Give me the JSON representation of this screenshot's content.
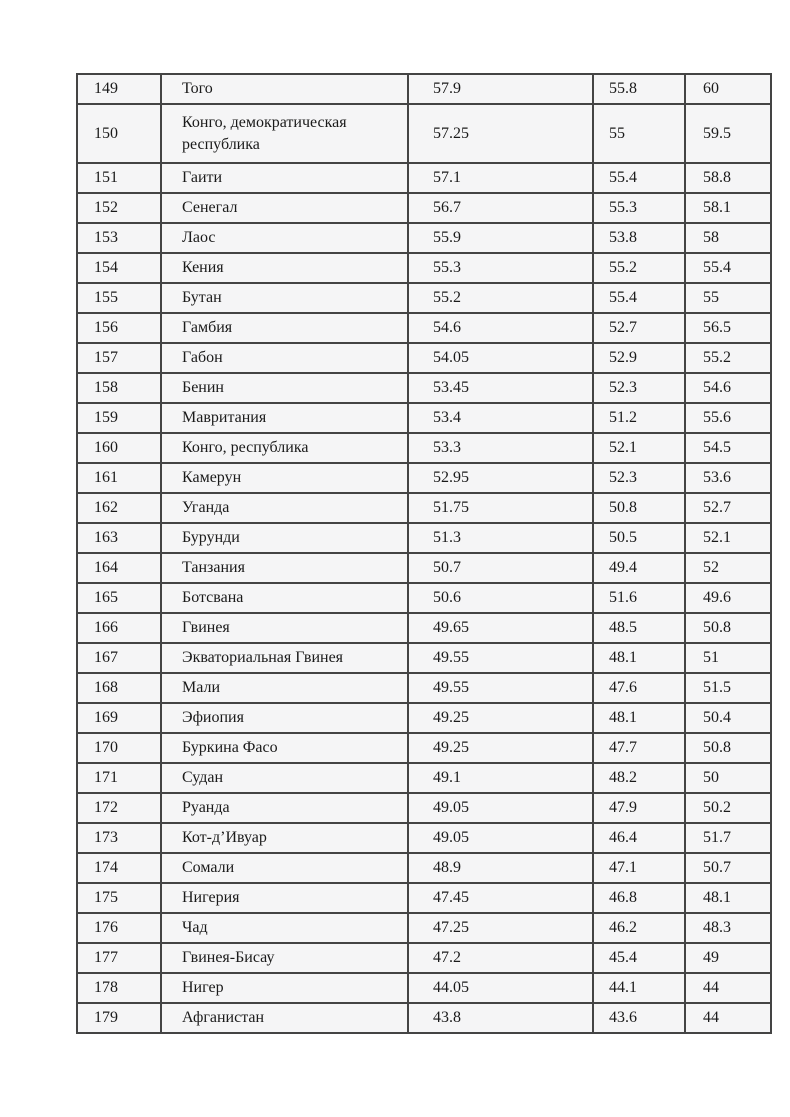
{
  "document": {
    "page_background": "#ffffff",
    "table": {
      "cell_background": "#f5f5f6",
      "border_color": "#444444",
      "text_color": "#1a1a1a",
      "rows": [
        [
          "149",
          "Того",
          "57.9",
          "55.8",
          "60"
        ],
        [
          "150",
          "Конго, демократическая республика",
          "57.25",
          "55",
          "59.5"
        ],
        [
          "151",
          "Гаити",
          "57.1",
          "55.4",
          "58.8"
        ],
        [
          "152",
          "Сенегал",
          "56.7",
          "55.3",
          "58.1"
        ],
        [
          "153",
          "Лаос",
          "55.9",
          "53.8",
          "58"
        ],
        [
          "154",
          "Кения",
          "55.3",
          "55.2",
          "55.4"
        ],
        [
          "155",
          "Бутан",
          "55.2",
          "55.4",
          "55"
        ],
        [
          "156",
          "Гамбия",
          "54.6",
          "52.7",
          "56.5"
        ],
        [
          "157",
          "Габон",
          "54.05",
          "52.9",
          "55.2"
        ],
        [
          "158",
          "Бенин",
          "53.45",
          "52.3",
          "54.6"
        ],
        [
          "159",
          "Мавритания",
          "53.4",
          "51.2",
          "55.6"
        ],
        [
          "160",
          "Конго, республика",
          "53.3",
          "52.1",
          "54.5"
        ],
        [
          "161",
          "Камерун",
          "52.95",
          "52.3",
          "53.6"
        ],
        [
          "162",
          "Уганда",
          "51.75",
          "50.8",
          "52.7"
        ],
        [
          "163",
          "Бурунди",
          "51.3",
          "50.5",
          "52.1"
        ],
        [
          "164",
          "Танзания",
          "50.7",
          "49.4",
          "52"
        ],
        [
          "165",
          "Ботсвана",
          "50.6",
          "51.6",
          "49.6"
        ],
        [
          "166",
          "Гвинея",
          "49.65",
          "48.5",
          "50.8"
        ],
        [
          "167",
          "Экваториальная Гвинея",
          "49.55",
          "48.1",
          "51"
        ],
        [
          "168",
          "Мали",
          "49.55",
          "47.6",
          "51.5"
        ],
        [
          "169",
          "Эфиопия",
          "49.25",
          "48.1",
          "50.4"
        ],
        [
          "170",
          "Буркина Фасо",
          "49.25",
          "47.7",
          "50.8"
        ],
        [
          "171",
          "Судан",
          "49.1",
          "48.2",
          "50"
        ],
        [
          "172",
          "Руанда",
          "49.05",
          "47.9",
          "50.2"
        ],
        [
          "173",
          "Кот-д’Ивуар",
          "49.05",
          "46.4",
          "51.7"
        ],
        [
          "174",
          "Сомали",
          "48.9",
          "47.1",
          "50.7"
        ],
        [
          "175",
          "Нигерия",
          "47.45",
          "46.8",
          "48.1"
        ],
        [
          "176",
          "Чад",
          "47.25",
          "46.2",
          "48.3"
        ],
        [
          "177",
          "Гвинея-Бисау",
          "47.2",
          "45.4",
          "49"
        ],
        [
          "178",
          "Нигер",
          "44.05",
          "44.1",
          "44"
        ],
        [
          "179",
          "Афганистан",
          "43.8",
          "43.6",
          "44"
        ]
      ]
    }
  }
}
